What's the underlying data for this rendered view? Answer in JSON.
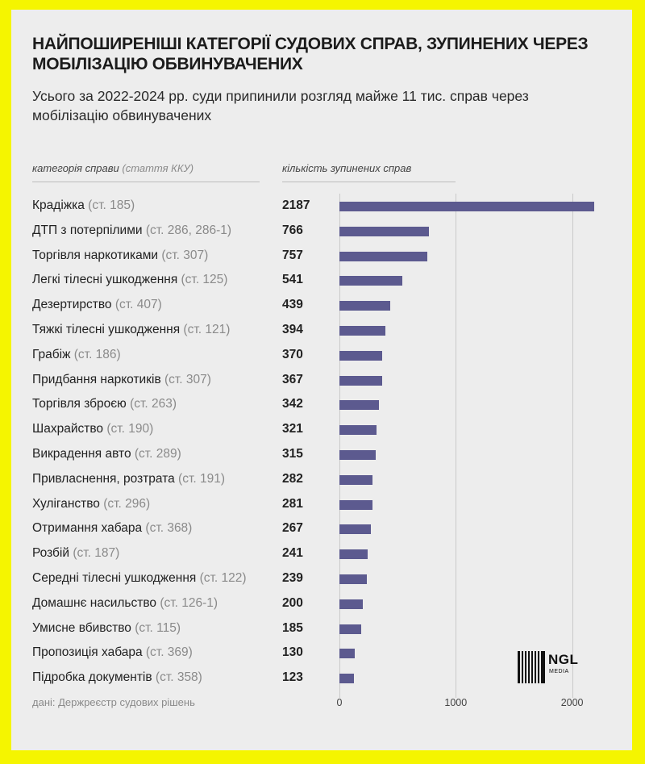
{
  "title": "Найпоширеніші категорії судових справ, зупинених через мобілізацію обвинувачених",
  "subtitle": "Усього за 2022-2024 рр. суди припинили розгляд майже 11 тис. справ через мобілізацію обвинувачених",
  "columns": {
    "category_main": "категорія справи",
    "category_note": "(стаття ККУ)",
    "count": "кількість зупинених справ"
  },
  "source": "дані: Держреєстр судових рішень",
  "logo": {
    "text": "NGL",
    "sub": "MEDIA"
  },
  "colors": {
    "bar": "#5c5a8f",
    "background": "#ededed",
    "frame": "#f5f500"
  },
  "chart_data": {
    "type": "bar",
    "orientation": "horizontal",
    "categories": [
      "Крадіжка",
      "ДТП з потерпілими",
      "Торгівля наркотиками",
      "Легкі тілесні ушкодження",
      "Дезертирство",
      "Тяжкі тілесні ушкодження",
      "Грабіж",
      "Придбання наркотиків",
      "Торгівля зброєю",
      "Шахрайство",
      "Викрадення авто",
      "Привласнення, розтрата",
      "Хуліганство",
      "Отримання хабара",
      "Розбій",
      "Середні тілесні ушкодження",
      "Домашнє насильство",
      "Умисне вбивство",
      "Пропозиція хабара",
      "Підробка документів"
    ],
    "articles": [
      "(ст. 185)",
      "(ст. 286, 286-1)",
      "(ст. 307)",
      "(ст. 125)",
      "(ст. 407)",
      "(ст. 121)",
      "(ст. 186)",
      "(ст. 307)",
      "(ст. 263)",
      "(ст. 190)",
      "(ст. 289)",
      "(ст. 191)",
      "(ст. 296)",
      "(ст. 368)",
      "(ст. 187)",
      "(ст. 122)",
      "(ст. 126-1)",
      "(ст. 115)",
      "(ст. 369)",
      "(ст. 358)"
    ],
    "values": [
      2187,
      766,
      757,
      541,
      439,
      394,
      370,
      367,
      342,
      321,
      315,
      282,
      281,
      267,
      241,
      239,
      200,
      185,
      130,
      123
    ],
    "xlim": [
      0,
      2200
    ],
    "xticks": [
      0,
      1000,
      2000
    ],
    "grid": true
  }
}
